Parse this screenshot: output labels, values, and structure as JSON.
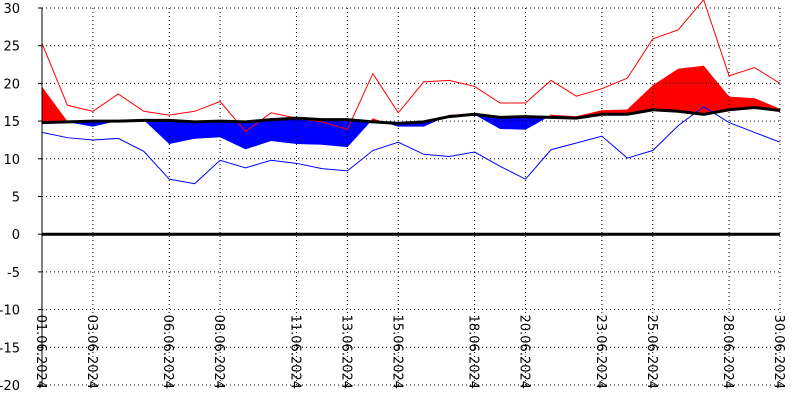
{
  "colors": {
    "max_line": "#ff0000",
    "min_line": "#0000ff",
    "warm_fill": "#ff0000",
    "cool_fill": "#0000ff",
    "normal_line": "#000000",
    "zero_line": "#000000",
    "grid": "#000000"
  },
  "chart_data": {
    "type": "line",
    "title": "",
    "xlabel": "",
    "ylabel": "",
    "ylim": [
      -20,
      30
    ],
    "yticks": [
      30,
      25,
      20,
      15,
      10,
      5,
      0,
      -5,
      -10,
      -15,
      -20
    ],
    "ytick_labels": [
      "30",
      "25",
      "20",
      "15",
      "10",
      "5",
      "0",
      "-5",
      "-10",
      "-15",
      "-20"
    ],
    "xticks": [
      {
        "day": 1,
        "label": "01.06.2024"
      },
      {
        "day": 3,
        "label": "03.06.2024"
      },
      {
        "day": 6,
        "label": "06.06.2024"
      },
      {
        "day": 8,
        "label": "08.06.2024"
      },
      {
        "day": 11,
        "label": "11.06.2024"
      },
      {
        "day": 13,
        "label": "13.06.2024"
      },
      {
        "day": 15,
        "label": "15.06.2024"
      },
      {
        "day": 18,
        "label": "18.06.2024"
      },
      {
        "day": 20,
        "label": "20.06.2024"
      },
      {
        "day": 23,
        "label": "23.06.2024"
      },
      {
        "day": 25,
        "label": "25.06.2024"
      },
      {
        "day": 28,
        "label": "28.06.2024"
      },
      {
        "day": 30,
        "label": "30.06.2024"
      }
    ],
    "grid": true,
    "x": [
      1,
      2,
      3,
      4,
      5,
      6,
      7,
      8,
      9,
      10,
      11,
      12,
      13,
      14,
      15,
      16,
      17,
      18,
      19,
      20,
      21,
      22,
      23,
      24,
      25,
      26,
      27,
      28,
      29,
      30
    ],
    "series": [
      {
        "key": "max",
        "values": [
          25.3,
          17.1,
          16.3,
          18.6,
          16.3,
          15.8,
          16.3,
          17.6,
          13.6,
          16.1,
          15.4,
          14.9,
          13.9,
          21.3,
          16.1,
          20.2,
          20.4,
          19.6,
          17.4,
          17.4,
          20.4,
          18.3,
          19.3,
          20.7,
          25.9,
          27.1,
          31.1,
          21.0,
          22.1,
          20.0
        ]
      },
      {
        "key": "mean",
        "values": [
          19.5,
          14.9,
          14.3,
          15.1,
          15.2,
          12.0,
          12.7,
          12.9,
          11.3,
          12.4,
          12.0,
          11.9,
          11.6,
          15.3,
          14.3,
          14.3,
          15.8,
          15.9,
          14.0,
          13.9,
          15.8,
          15.6,
          16.4,
          16.5,
          19.7,
          21.9,
          22.3,
          18.2,
          18.0,
          16.6
        ]
      },
      {
        "key": "min",
        "values": [
          13.5,
          12.8,
          12.5,
          12.7,
          11.0,
          7.3,
          6.7,
          9.8,
          8.8,
          9.8,
          9.4,
          8.7,
          8.4,
          11.1,
          12.2,
          10.6,
          10.3,
          10.9,
          9.0,
          7.3,
          11.2,
          12.1,
          13.0,
          10.1,
          11.1,
          14.4,
          16.9,
          14.8,
          13.5,
          12.2
        ]
      },
      {
        "key": "normal",
        "values": [
          14.8,
          14.9,
          15.0,
          15.0,
          15.1,
          15.1,
          14.9,
          15.0,
          14.9,
          15.2,
          15.4,
          15.2,
          15.2,
          14.9,
          14.7,
          14.9,
          15.6,
          15.9,
          15.5,
          15.6,
          15.5,
          15.4,
          15.9,
          15.9,
          16.5,
          16.3,
          15.9,
          16.5,
          16.8,
          16.4
        ]
      }
    ]
  }
}
